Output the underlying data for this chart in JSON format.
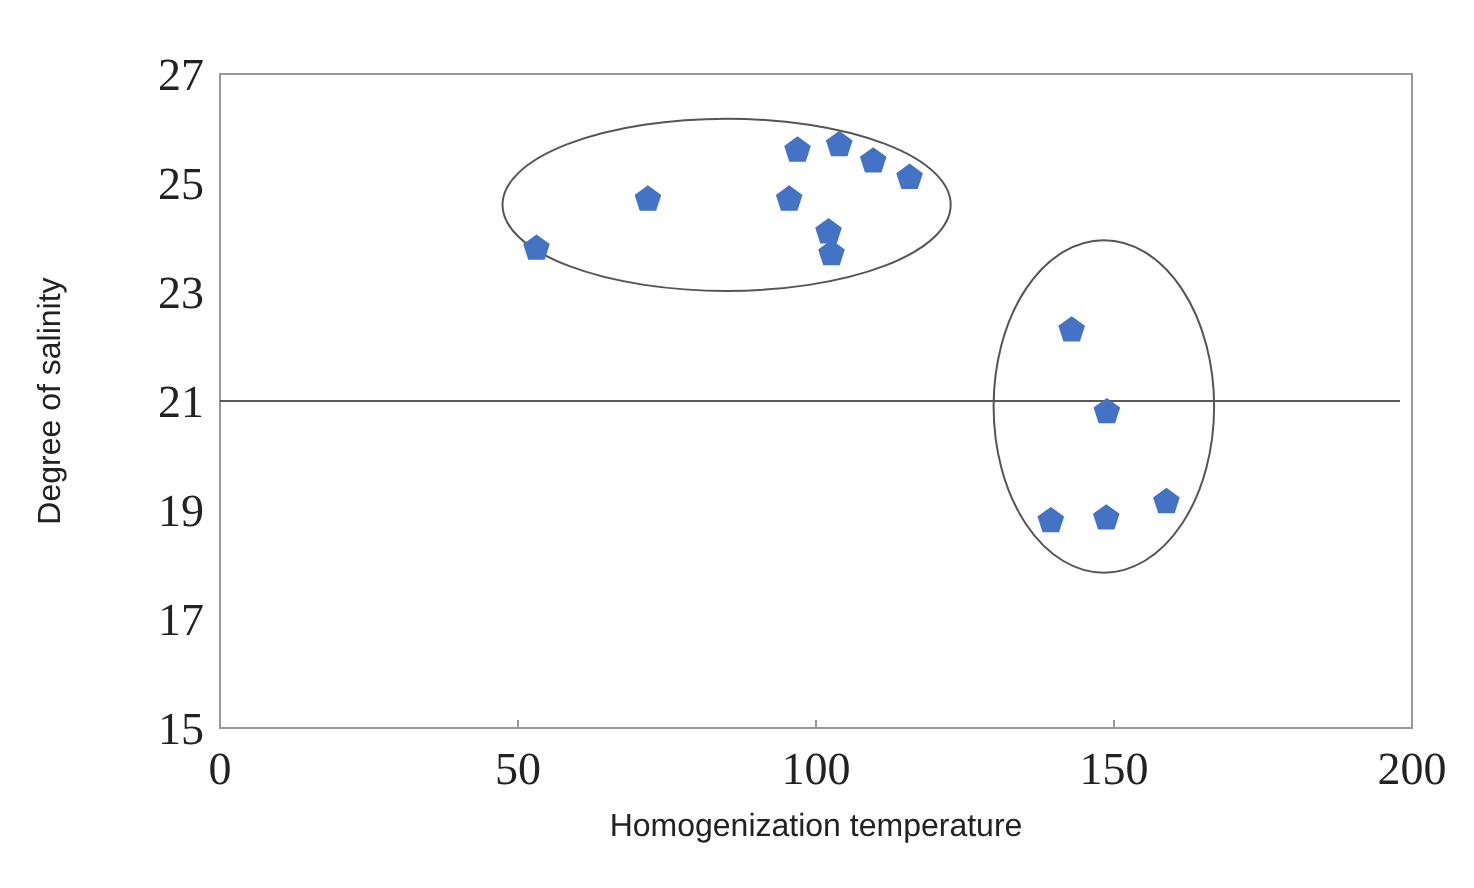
{
  "chart_data": {
    "type": "scatter",
    "xlabel": "Homogenization temperature",
    "ylabel": "Degree of salinity",
    "x": [
      53.1,
      71.8,
      95.5,
      96.9,
      103.9,
      109.6,
      115.7,
      102.1,
      102.6,
      142.9,
      148.8,
      139.4,
      148.7,
      158.8
    ],
    "series": [
      {
        "color": "#4472c4",
        "values": [
          23.8,
          24.7,
          24.7,
          25.6,
          25.7,
          25.4,
          25.1,
          24.1,
          23.7,
          22.3,
          20.8,
          18.8,
          18.85,
          19.15
        ]
      }
    ],
    "xlim": [
      0,
      200
    ],
    "xticks": [
      0,
      50,
      100,
      150,
      200
    ],
    "ylim": [
      15,
      27
    ],
    "yticks": [
      15,
      17,
      19,
      21,
      23,
      25,
      27
    ],
    "ref_lines": [
      {
        "axis": "y",
        "value": 21,
        "color": "#595959"
      }
    ],
    "grid": false
  }
}
